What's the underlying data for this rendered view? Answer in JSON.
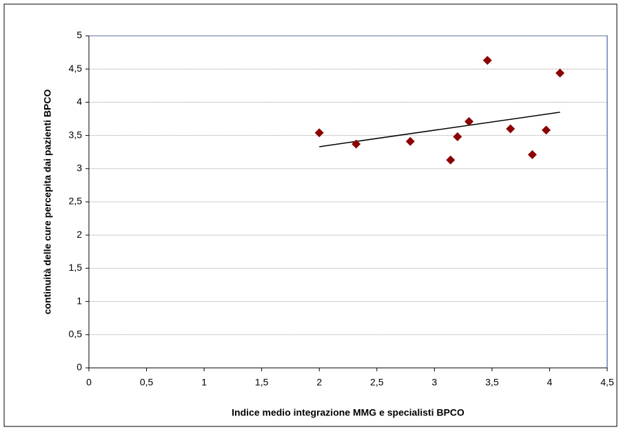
{
  "chart_data": {
    "type": "scatter",
    "xlabel": "Indice medio integrazione MMG e specialisti BPCO",
    "ylabel": "continuità delle cure percepita dai pazienti BPCO",
    "x": [
      2.0,
      2.32,
      2.79,
      3.14,
      3.2,
      3.3,
      3.46,
      3.66,
      3.85,
      3.97,
      4.09
    ],
    "values": [
      3.54,
      3.37,
      3.41,
      3.13,
      3.48,
      3.71,
      4.63,
      3.6,
      3.21,
      3.58,
      4.44
    ],
    "color": "#8b0000",
    "trendline": {
      "x": [
        2.0,
        4.09
      ],
      "values": [
        3.33,
        3.85
      ],
      "color": "#000000"
    },
    "xlim": [
      0,
      4.5
    ],
    "xticks": [
      0,
      {
        "value": 0.5,
        "label": "0,5"
      },
      1,
      {
        "value": 1.5,
        "label": "1,5"
      },
      2,
      {
        "value": 2.5,
        "label": "2,5"
      },
      3,
      {
        "value": 3.5,
        "label": "3,5"
      },
      4,
      {
        "value": 4.5,
        "label": "4,5"
      }
    ],
    "ylim": [
      0,
      5
    ],
    "yticks": [
      0,
      {
        "value": 0.5,
        "label": "0,5"
      },
      1,
      {
        "value": 1.5,
        "label": "1,5"
      },
      2,
      {
        "value": 2.5,
        "label": "2,5"
      },
      3,
      {
        "value": 3.5,
        "label": "3,5"
      },
      4,
      {
        "value": 4.5,
        "label": "4,5"
      },
      5
    ],
    "grid": true
  }
}
